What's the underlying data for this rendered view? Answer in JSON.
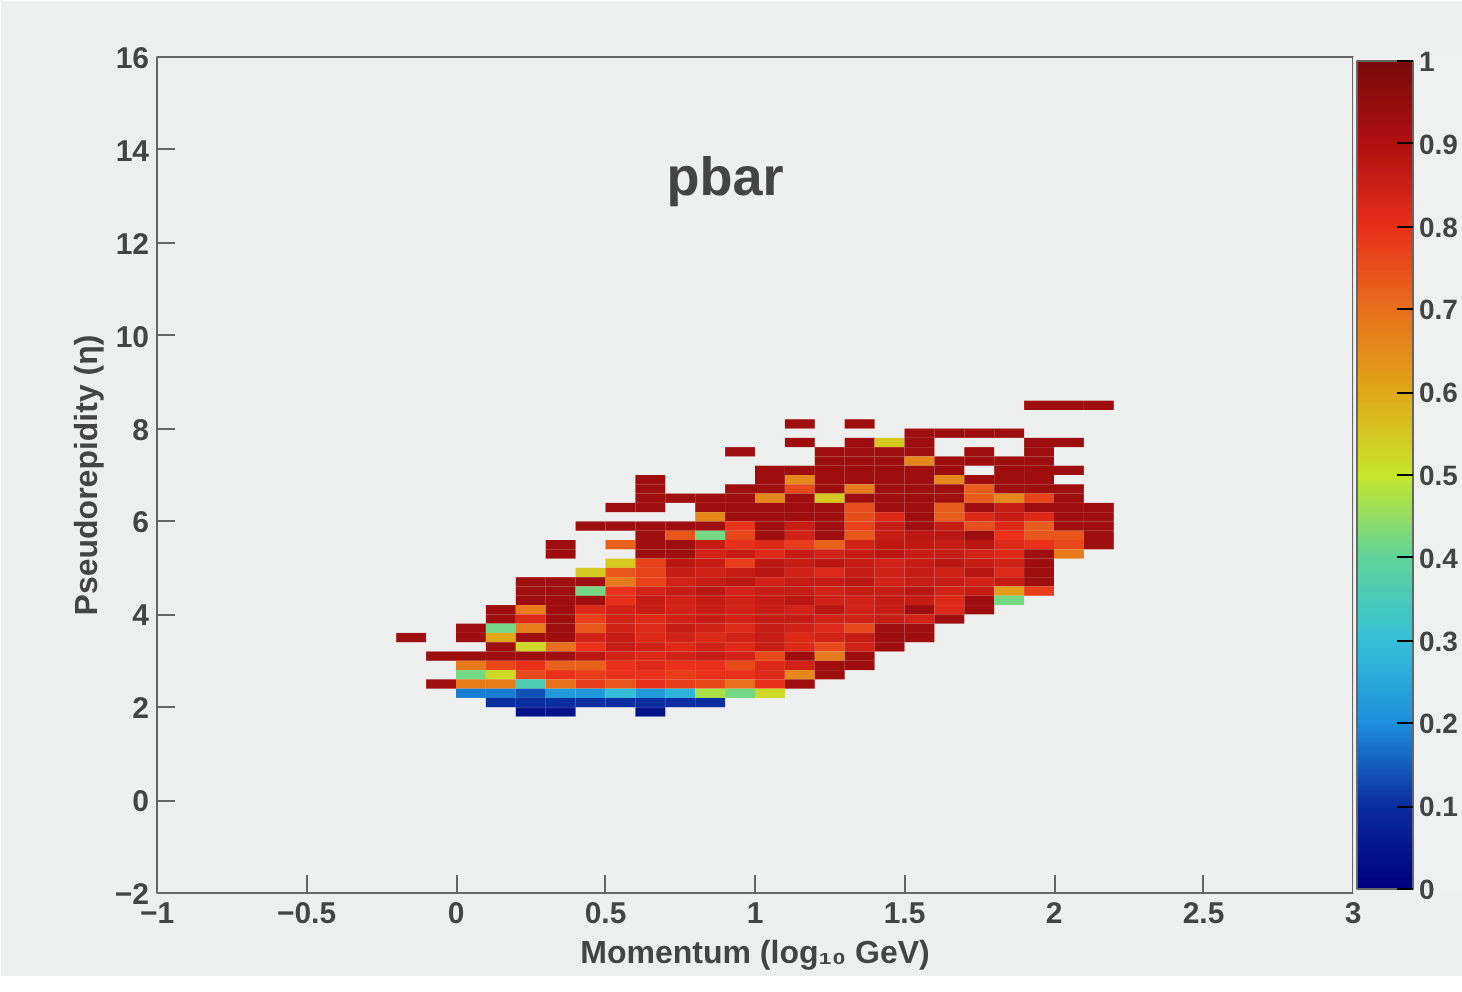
{
  "chart_data": {
    "type": "scatter",
    "marker": "square",
    "title": "pbar",
    "xlabel": "Momentum (log₁₀ GeV)",
    "ylabel": "Pseudorepidity (η)",
    "xlim": [
      -1,
      3
    ],
    "ylim": [
      -2,
      16
    ],
    "xticks": [
      -1,
      -0.5,
      0,
      0.5,
      1,
      1.5,
      2,
      2.5,
      3
    ],
    "yticks": [
      -2,
      0,
      2,
      4,
      6,
      8,
      10,
      12,
      14,
      16
    ],
    "clim": [
      0,
      1
    ],
    "cticks": [
      0,
      0.1,
      0.2,
      0.3,
      0.4,
      0.5,
      0.6,
      0.7,
      0.8,
      0.9,
      1
    ],
    "x": [
      1.95,
      2.05,
      2.15,
      1.15,
      1.35,
      1.55,
      1.65,
      1.75,
      1.85,
      1.15,
      1.35,
      1.45,
      1.55,
      1.95,
      2.05,
      0.95,
      1.25,
      1.35,
      1.45,
      1.55,
      1.75,
      1.95,
      1.25,
      1.35,
      1.45,
      1.55,
      1.65,
      1.75,
      1.85,
      1.95,
      1.05,
      1.15,
      1.25,
      1.35,
      1.45,
      1.55,
      1.65,
      1.85,
      1.95,
      2.05,
      0.65,
      1.05,
      1.15,
      1.25,
      1.35,
      1.45,
      1.55,
      1.65,
      1.75,
      1.85,
      1.95,
      0.65,
      0.95,
      1.05,
      1.15,
      1.25,
      1.35,
      1.45,
      1.55,
      1.65,
      1.75,
      1.85,
      1.95,
      2.05,
      0.65,
      0.75,
      0.85,
      0.95,
      1.05,
      1.15,
      1.25,
      1.35,
      1.45,
      1.55,
      1.65,
      1.75,
      1.85,
      1.95,
      2.05,
      0.55,
      0.65,
      0.85,
      0.95,
      1.05,
      1.15,
      1.25,
      1.35,
      1.45,
      1.55,
      1.65,
      1.75,
      1.85,
      1.95,
      2.05,
      2.15,
      0.85,
      0.95,
      1.05,
      1.15,
      1.25,
      1.35,
      1.45,
      1.55,
      1.65,
      1.75,
      1.85,
      1.95,
      2.05,
      2.15,
      0.45,
      0.55,
      0.65,
      0.75,
      0.85,
      0.95,
      1.05,
      1.15,
      1.25,
      1.35,
      1.45,
      1.55,
      1.65,
      1.75,
      1.85,
      1.95,
      2.05,
      2.15,
      0.65,
      0.75,
      0.85,
      0.95,
      1.05,
      1.15,
      1.25,
      1.35,
      1.45,
      1.55,
      1.65,
      1.75,
      1.85,
      1.95,
      2.05,
      2.15,
      0.35,
      0.55,
      0.65,
      0.75,
      0.85,
      0.95,
      1.05,
      1.15,
      1.25,
      1.35,
      1.45,
      1.55,
      1.65,
      1.75,
      1.85,
      1.95,
      2.05,
      2.15,
      0.35,
      0.65,
      0.75,
      0.85,
      0.95,
      1.05,
      1.15,
      1.25,
      1.35,
      1.45,
      1.55,
      1.65,
      1.75,
      1.85,
      1.95,
      2.05,
      0.55,
      0.65,
      0.75,
      0.85,
      0.95,
      1.05,
      1.15,
      1.25,
      1.35,
      1.45,
      1.55,
      1.65,
      1.75,
      1.85,
      1.95,
      0.45,
      0.55,
      0.65,
      0.75,
      0.85,
      0.95,
      1.05,
      1.15,
      1.25,
      1.35,
      1.45,
      1.55,
      1.65,
      1.75,
      1.85,
      1.95,
      0.25,
      0.35,
      0.45,
      0.55,
      0.65,
      0.75,
      0.85,
      0.95,
      1.05,
      1.15,
      1.25,
      1.35,
      1.45,
      1.55,
      1.65,
      1.75,
      1.85,
      1.95,
      0.25,
      0.35,
      0.45,
      0.55,
      0.65,
      0.75,
      0.85,
      0.95,
      1.05,
      1.15,
      1.25,
      1.35,
      1.45,
      1.55,
      1.65,
      1.75,
      1.85,
      1.95,
      0.25,
      0.35,
      0.45,
      0.55,
      0.65,
      0.75,
      0.85,
      0.95,
      1.05,
      1.15,
      1.25,
      1.35,
      1.45,
      1.55,
      1.65,
      1.75,
      1.85,
      0.15,
      0.25,
      0.35,
      0.45,
      0.55,
      0.65,
      0.75,
      0.85,
      0.95,
      1.05,
      1.15,
      1.25,
      1.35,
      1.45,
      1.55,
      1.65,
      1.75,
      0.15,
      0.25,
      0.35,
      0.45,
      0.55,
      0.65,
      0.75,
      0.85,
      0.95,
      1.05,
      1.15,
      1.25,
      1.35,
      1.45,
      1.55,
      1.65,
      0.05,
      0.15,
      0.25,
      0.35,
      0.45,
      0.55,
      0.65,
      0.75,
      0.85,
      0.95,
      1.05,
      1.15,
      1.25,
      1.35,
      1.45,
      1.55,
      -0.15,
      0.05,
      0.15,
      0.25,
      0.35,
      0.45,
      0.55,
      0.65,
      0.75,
      0.85,
      0.95,
      1.05,
      1.15,
      1.25,
      1.35,
      1.45,
      1.55,
      0.15,
      0.25,
      0.35,
      0.45,
      0.55,
      0.65,
      0.75,
      0.85,
      0.95,
      1.05,
      1.15,
      1.25,
      1.35,
      1.45,
      -0.05,
      0.05,
      0.15,
      0.25,
      0.35,
      0.45,
      0.55,
      0.65,
      0.75,
      0.85,
      0.95,
      1.05,
      1.15,
      1.25,
      1.35,
      0.05,
      0.15,
      0.25,
      0.35,
      0.45,
      0.55,
      0.65,
      0.75,
      0.85,
      0.95,
      1.05,
      1.15,
      1.25,
      1.35,
      0.05,
      0.15,
      0.25,
      0.35,
      0.45,
      0.55,
      0.65,
      0.75,
      0.85,
      0.95,
      1.05,
      1.15,
      1.25,
      -0.05,
      0.05,
      0.15,
      0.25,
      0.35,
      0.45,
      0.55,
      0.65,
      0.75,
      0.85,
      0.95,
      1.05,
      1.15,
      0.05,
      0.15,
      0.25,
      0.35,
      0.45,
      0.55,
      0.65,
      0.75,
      0.85,
      0.95,
      1.05,
      0.15,
      0.25,
      0.35,
      0.45,
      0.55,
      0.65,
      0.75,
      0.85,
      0.25,
      0.35,
      0.65
    ],
    "values": [
      8.5,
      8.5,
      8.5,
      8.1,
      8.1,
      7.9,
      7.9,
      7.9,
      7.9,
      7.7,
      7.7,
      7.7,
      7.7,
      7.7,
      7.7,
      7.5,
      7.5,
      7.5,
      7.5,
      7.5,
      7.5,
      7.5,
      7.3,
      7.3,
      7.3,
      7.3,
      7.3,
      7.3,
      7.3,
      7.3,
      7.1,
      7.1,
      7.1,
      7.1,
      7.1,
      7.1,
      7.1,
      7.1,
      7.1,
      7.1,
      6.9,
      6.9,
      6.9,
      6.9,
      6.9,
      6.9,
      6.9,
      6.9,
      6.9,
      6.9,
      6.9,
      6.7,
      6.7,
      6.7,
      6.7,
      6.7,
      6.7,
      6.7,
      6.7,
      6.7,
      6.7,
      6.7,
      6.7,
      6.7,
      6.5,
      6.5,
      6.5,
      6.5,
      6.5,
      6.5,
      6.5,
      6.5,
      6.5,
      6.5,
      6.5,
      6.5,
      6.5,
      6.5,
      6.5,
      6.3,
      6.3,
      6.3,
      6.3,
      6.3,
      6.3,
      6.3,
      6.3,
      6.3,
      6.3,
      6.3,
      6.3,
      6.3,
      6.3,
      6.3,
      6.3,
      6.1,
      6.1,
      6.1,
      6.1,
      6.1,
      6.1,
      6.1,
      6.1,
      6.1,
      6.1,
      6.1,
      6.1,
      6.1,
      6.1,
      5.9,
      5.9,
      5.9,
      5.9,
      5.9,
      5.9,
      5.9,
      5.9,
      5.9,
      5.9,
      5.9,
      5.9,
      5.9,
      5.9,
      5.9,
      5.9,
      5.9,
      5.9,
      5.7,
      5.7,
      5.7,
      5.7,
      5.7,
      5.7,
      5.7,
      5.7,
      5.7,
      5.7,
      5.7,
      5.7,
      5.7,
      5.7,
      5.7,
      5.7,
      5.5,
      5.5,
      5.5,
      5.5,
      5.5,
      5.5,
      5.5,
      5.5,
      5.5,
      5.5,
      5.5,
      5.5,
      5.5,
      5.5,
      5.5,
      5.5,
      5.5,
      5.5,
      5.3,
      5.3,
      5.3,
      5.3,
      5.3,
      5.3,
      5.3,
      5.3,
      5.3,
      5.3,
      5.3,
      5.3,
      5.3,
      5.3,
      5.3,
      5.3,
      5.1,
      5.1,
      5.1,
      5.1,
      5.1,
      5.1,
      5.1,
      5.1,
      5.1,
      5.1,
      5.1,
      5.1,
      5.1,
      5.1,
      5.1,
      4.9,
      4.9,
      4.9,
      4.9,
      4.9,
      4.9,
      4.9,
      4.9,
      4.9,
      4.9,
      4.9,
      4.9,
      4.9,
      4.9,
      4.9,
      4.9,
      4.7,
      4.7,
      4.7,
      4.7,
      4.7,
      4.7,
      4.7,
      4.7,
      4.7,
      4.7,
      4.7,
      4.7,
      4.7,
      4.7,
      4.7,
      4.7,
      4.7,
      4.7,
      4.5,
      4.5,
      4.5,
      4.5,
      4.5,
      4.5,
      4.5,
      4.5,
      4.5,
      4.5,
      4.5,
      4.5,
      4.5,
      4.5,
      4.5,
      4.5,
      4.5,
      4.5,
      4.3,
      4.3,
      4.3,
      4.3,
      4.3,
      4.3,
      4.3,
      4.3,
      4.3,
      4.3,
      4.3,
      4.3,
      4.3,
      4.3,
      4.3,
      4.3,
      4.3,
      4.1,
      4.1,
      4.1,
      4.1,
      4.1,
      4.1,
      4.1,
      4.1,
      4.1,
      4.1,
      4.1,
      4.1,
      4.1,
      4.1,
      4.1,
      4.1,
      4.1,
      3.9,
      3.9,
      3.9,
      3.9,
      3.9,
      3.9,
      3.9,
      3.9,
      3.9,
      3.9,
      3.9,
      3.9,
      3.9,
      3.9,
      3.9,
      3.9,
      3.7,
      3.7,
      3.7,
      3.7,
      3.7,
      3.7,
      3.7,
      3.7,
      3.7,
      3.7,
      3.7,
      3.7,
      3.7,
      3.7,
      3.7,
      3.7,
      3.5,
      3.5,
      3.5,
      3.5,
      3.5,
      3.5,
      3.5,
      3.5,
      3.5,
      3.5,
      3.5,
      3.5,
      3.5,
      3.5,
      3.5,
      3.5,
      3.5,
      3.3,
      3.3,
      3.3,
      3.3,
      3.3,
      3.3,
      3.3,
      3.3,
      3.3,
      3.3,
      3.3,
      3.3,
      3.3,
      3.3,
      3.1,
      3.1,
      3.1,
      3.1,
      3.1,
      3.1,
      3.1,
      3.1,
      3.1,
      3.1,
      3.1,
      3.1,
      3.1,
      3.1,
      3.1,
      2.9,
      2.9,
      2.9,
      2.9,
      2.9,
      2.9,
      2.9,
      2.9,
      2.9,
      2.9,
      2.9,
      2.9,
      2.9,
      2.9,
      2.7,
      2.7,
      2.7,
      2.7,
      2.7,
      2.7,
      2.7,
      2.7,
      2.7,
      2.7,
      2.7,
      2.7,
      2.7,
      2.5,
      2.5,
      2.5,
      2.5,
      2.5,
      2.5,
      2.5,
      2.5,
      2.5,
      2.5,
      2.5,
      2.5,
      2.5,
      2.3,
      2.3,
      2.3,
      2.3,
      2.3,
      2.3,
      2.3,
      2.3,
      2.3,
      2.3,
      2.3,
      2.1,
      2.1,
      2.1,
      2.1,
      2.1,
      2.1,
      2.1,
      2.1,
      1.9,
      1.9,
      1.9
    ],
    "cvalues": [
      0.93,
      0.93,
      0.93,
      0.93,
      0.93,
      0.93,
      0.93,
      0.93,
      0.93,
      0.93,
      0.93,
      0.55,
      0.93,
      0.93,
      0.93,
      0.93,
      0.93,
      0.93,
      0.93,
      0.93,
      0.93,
      0.93,
      0.93,
      0.93,
      0.93,
      0.66,
      0.93,
      0.93,
      0.93,
      0.93,
      0.93,
      0.93,
      0.93,
      0.93,
      0.93,
      0.93,
      0.93,
      0.93,
      0.93,
      0.93,
      0.93,
      0.93,
      0.66,
      0.93,
      0.93,
      0.93,
      0.93,
      0.66,
      0.93,
      0.93,
      0.93,
      0.93,
      0.93,
      0.93,
      0.76,
      0.93,
      0.68,
      0.93,
      0.93,
      0.93,
      0.73,
      0.93,
      0.93,
      0.93,
      0.93,
      0.93,
      0.93,
      0.93,
      0.66,
      0.93,
      0.55,
      0.93,
      0.93,
      0.93,
      0.93,
      0.73,
      0.66,
      0.77,
      0.93,
      0.93,
      0.93,
      0.93,
      0.93,
      0.93,
      0.93,
      0.93,
      0.75,
      0.93,
      0.93,
      0.73,
      0.93,
      0.86,
      0.93,
      0.93,
      0.93,
      0.66,
      0.93,
      0.93,
      0.93,
      0.93,
      0.75,
      0.82,
      0.93,
      0.73,
      0.82,
      0.86,
      0.82,
      0.93,
      0.93,
      0.93,
      0.93,
      0.93,
      0.93,
      0.93,
      0.79,
      0.93,
      0.86,
      0.93,
      0.77,
      0.86,
      0.93,
      0.86,
      0.75,
      0.82,
      0.73,
      0.93,
      0.93,
      0.93,
      0.74,
      0.42,
      0.76,
      0.93,
      0.84,
      0.93,
      0.74,
      0.86,
      0.88,
      0.88,
      0.93,
      0.8,
      0.74,
      0.74,
      0.93,
      0.93,
      0.72,
      0.93,
      0.93,
      0.86,
      0.8,
      0.82,
      0.78,
      0.72,
      0.84,
      0.87,
      0.87,
      0.86,
      0.88,
      0.82,
      0.8,
      0.76,
      0.93,
      0.93,
      0.93,
      0.93,
      0.84,
      0.86,
      0.82,
      0.86,
      0.84,
      0.86,
      0.88,
      0.86,
      0.86,
      0.84,
      0.82,
      0.93,
      0.68,
      0.55,
      0.77,
      0.88,
      0.86,
      0.78,
      0.88,
      0.86,
      0.88,
      0.86,
      0.84,
      0.86,
      0.88,
      0.86,
      0.84,
      0.93,
      0.55,
      0.74,
      0.77,
      0.86,
      0.84,
      0.86,
      0.88,
      0.84,
      0.82,
      0.86,
      0.84,
      0.86,
      0.84,
      0.88,
      0.82,
      0.93,
      0.93,
      0.93,
      0.93,
      0.68,
      0.77,
      0.84,
      0.86,
      0.88,
      0.84,
      0.86,
      0.86,
      0.88,
      0.84,
      0.86,
      0.86,
      0.84,
      0.86,
      0.93,
      0.93,
      0.93,
      0.42,
      0.8,
      0.84,
      0.86,
      0.88,
      0.84,
      0.86,
      0.86,
      0.84,
      0.86,
      0.86,
      0.88,
      0.84,
      0.86,
      0.62,
      0.78,
      0.93,
      0.93,
      0.93,
      0.8,
      0.86,
      0.84,
      0.86,
      0.84,
      0.86,
      0.88,
      0.84,
      0.84,
      0.86,
      0.86,
      0.82,
      0.93,
      0.42,
      0.93,
      0.68,
      0.93,
      0.82,
      0.84,
      0.86,
      0.84,
      0.86,
      0.84,
      0.86,
      0.84,
      0.88,
      0.84,
      0.86,
      0.93,
      0.82,
      0.93,
      0.93,
      0.82,
      0.93,
      0.78,
      0.84,
      0.82,
      0.84,
      0.86,
      0.84,
      0.86,
      0.86,
      0.84,
      0.84,
      0.86,
      0.84,
      0.93,
      0.93,
      0.42,
      0.68,
      0.93,
      0.74,
      0.84,
      0.82,
      0.86,
      0.84,
      0.82,
      0.86,
      0.84,
      0.82,
      0.76,
      0.93,
      0.93,
      0.93,
      0.93,
      0.6,
      0.93,
      0.93,
      0.84,
      0.86,
      0.82,
      0.84,
      0.82,
      0.84,
      0.86,
      0.82,
      0.84,
      0.86,
      0.93,
      0.93,
      0.93,
      0.52,
      0.7,
      0.8,
      0.86,
      0.84,
      0.82,
      0.84,
      0.82,
      0.86,
      0.82,
      0.76,
      0.84,
      0.93,
      0.93,
      0.93,
      0.93,
      0.93,
      0.93,
      0.88,
      0.84,
      0.82,
      0.84,
      0.86,
      0.84,
      0.76,
      0.93,
      0.68,
      0.93,
      0.68,
      0.76,
      0.8,
      0.72,
      0.72,
      0.8,
      0.82,
      0.8,
      0.8,
      0.76,
      0.82,
      0.84,
      0.93,
      0.93,
      0.42,
      0.52,
      0.76,
      0.8,
      0.78,
      0.8,
      0.8,
      0.78,
      0.8,
      0.8,
      0.82,
      0.66,
      0.93,
      0.93,
      0.68,
      0.68,
      0.36,
      0.7,
      0.78,
      0.74,
      0.8,
      0.78,
      0.76,
      0.7,
      0.8,
      0.93,
      0.18,
      0.18,
      0.14,
      0.22,
      0.22,
      0.3,
      0.22,
      0.28,
      0.47,
      0.42,
      0.52,
      0.1,
      0.1,
      0.1,
      0.1,
      0.1,
      0.1,
      0.1,
      0.1,
      0.04,
      0.04,
      0.04
    ]
  }
}
